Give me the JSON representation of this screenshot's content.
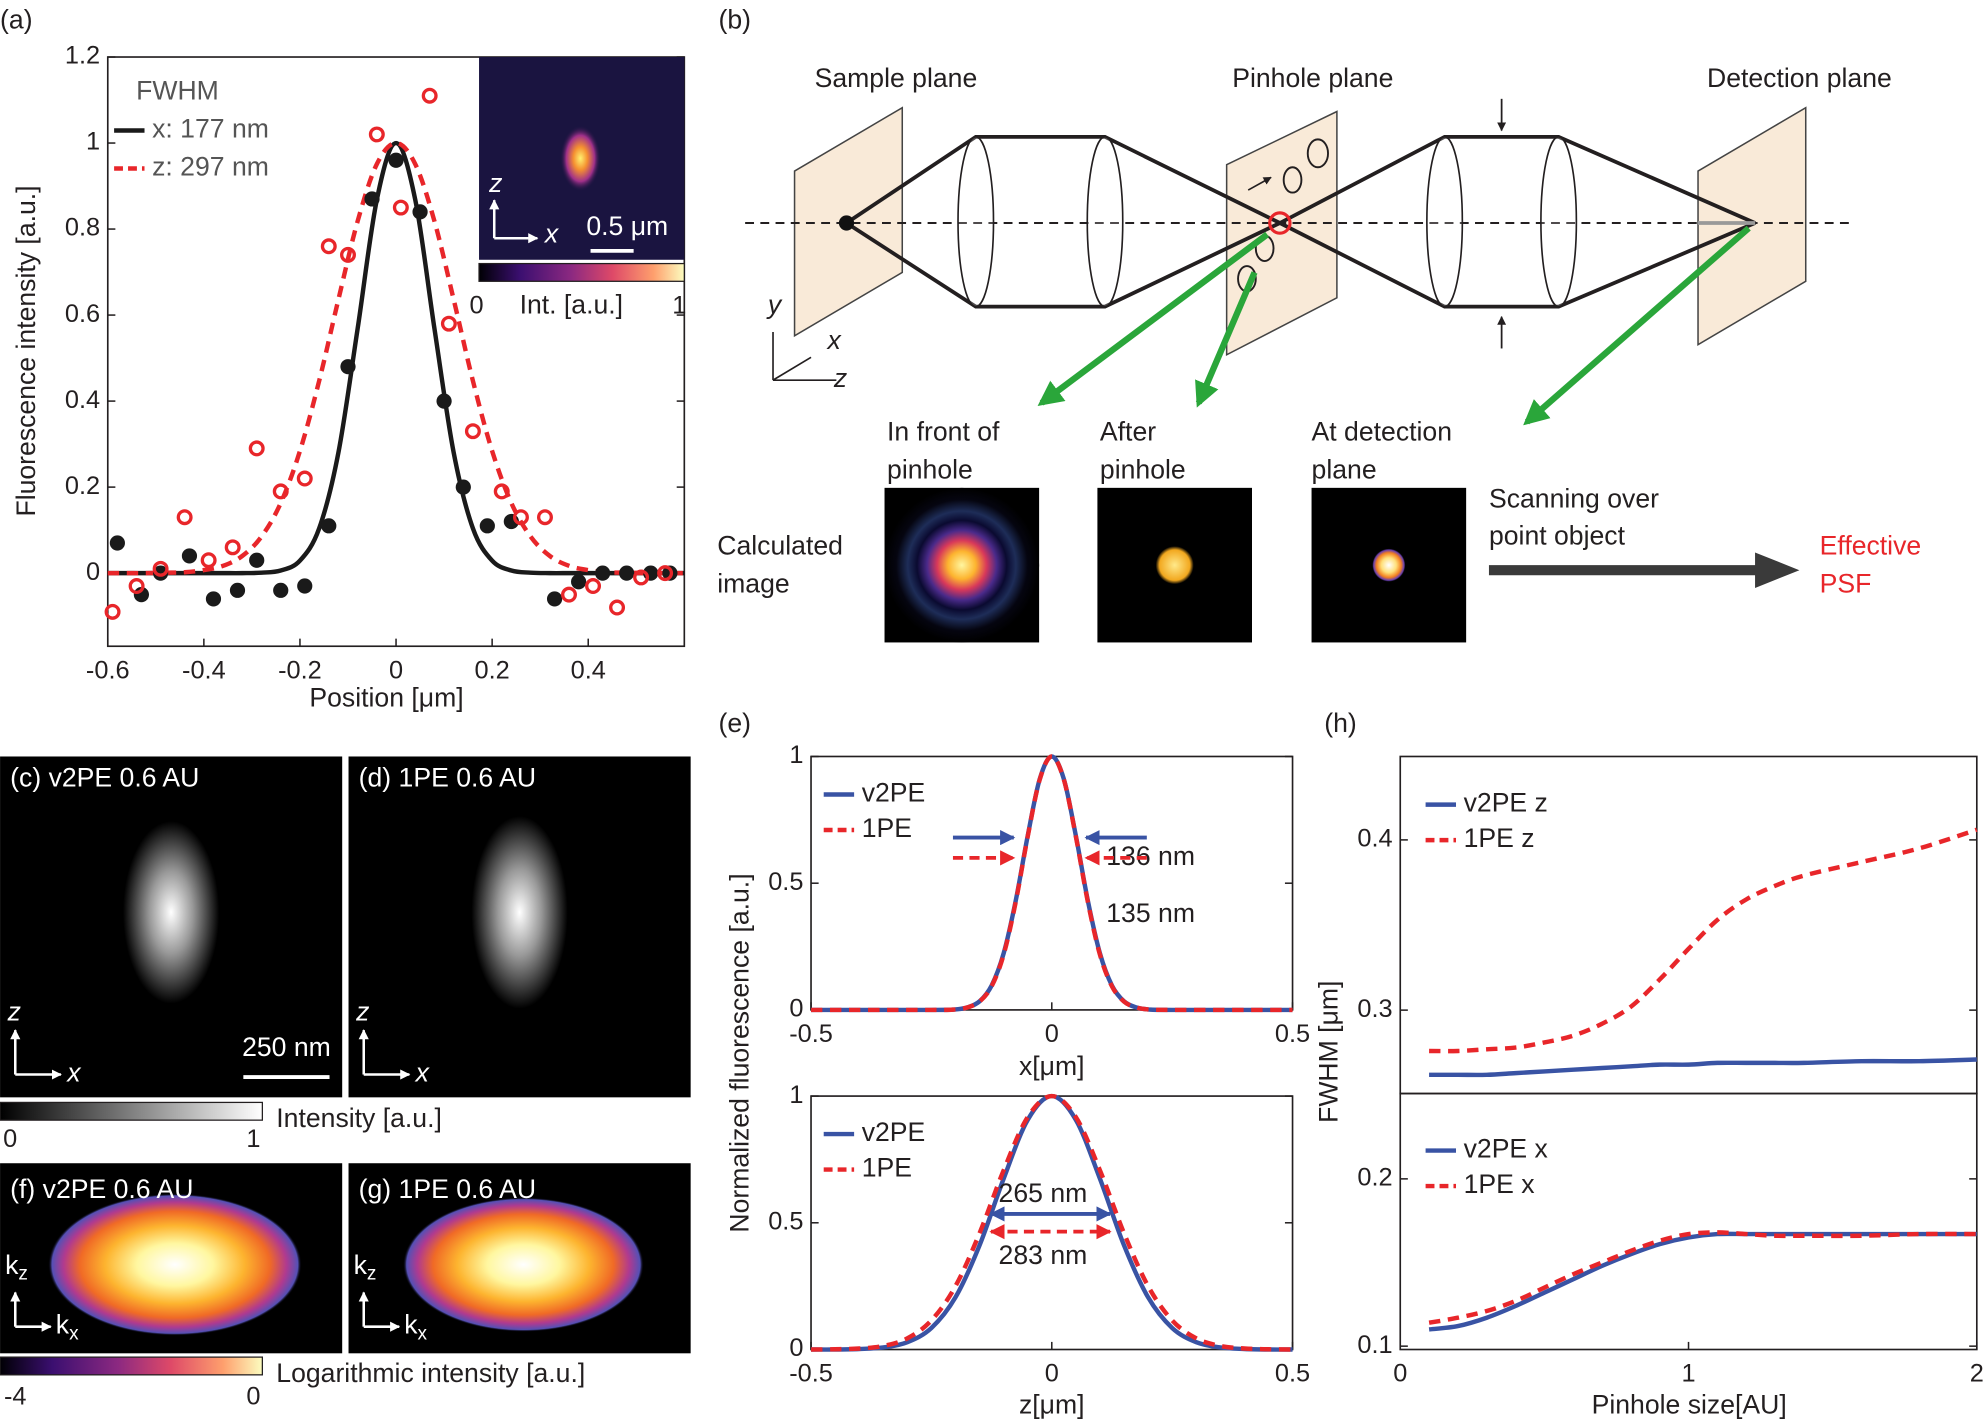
{
  "chart_data": [
    {
      "type": "scatter",
      "panel": "(a)",
      "xlabel": "Position [μm]",
      "ylabel": "Fluorescence intensity [a.u.]",
      "legend_title": "FWHM",
      "xlim": [
        -0.6,
        0.6
      ],
      "ylim": [
        -0.17,
        1.2
      ],
      "xticks": [
        -0.6,
        -0.4,
        -0.2,
        0,
        0.2,
        0.4
      ],
      "yticks": [
        0,
        0.2,
        0.4,
        0.6,
        0.8,
        1,
        1.2
      ],
      "series": [
        {
          "name": "x: 177 nm",
          "color": "#1a1a1a",
          "style": "solid",
          "x": [
            -0.6,
            -0.56,
            -0.52,
            -0.48,
            -0.44,
            -0.4,
            -0.36,
            -0.32,
            -0.28,
            -0.24,
            -0.2,
            -0.16,
            -0.12,
            -0.08,
            -0.04,
            0,
            0.04,
            0.08,
            0.12,
            0.16,
            0.2,
            0.24,
            0.28,
            0.32,
            0.36,
            0.4,
            0.44,
            0.48,
            0.52,
            0.56,
            0.6
          ],
          "values": [
            0,
            0,
            0,
            0,
            0,
            0,
            0,
            0,
            0.001,
            0.006,
            0.029,
            0.104,
            0.28,
            0.568,
            0.868,
            1,
            0.868,
            0.568,
            0.28,
            0.104,
            0.029,
            0.006,
            0.001,
            0,
            0,
            0,
            0,
            0,
            0,
            0,
            0
          ]
        },
        {
          "name": "z: 297 nm",
          "color": "#e8262a",
          "style": "dashed",
          "x": [
            -0.6,
            -0.56,
            -0.52,
            -0.48,
            -0.44,
            -0.4,
            -0.36,
            -0.32,
            -0.28,
            -0.24,
            -0.2,
            -0.16,
            -0.12,
            -0.08,
            -0.04,
            0,
            0.04,
            0.08,
            0.12,
            0.16,
            0.2,
            0.24,
            0.28,
            0.32,
            0.36,
            0.4,
            0.44,
            0.48,
            0.52,
            0.56,
            0.6
          ],
          "values": [
            0,
            0,
            0,
            0.001,
            0.002,
            0.007,
            0.017,
            0.04,
            0.085,
            0.163,
            0.284,
            0.447,
            0.636,
            0.818,
            0.951,
            1,
            0.951,
            0.818,
            0.636,
            0.447,
            0.284,
            0.163,
            0.085,
            0.04,
            0.017,
            0.007,
            0.002,
            0.001,
            0,
            0,
            0
          ]
        },
        {
          "color": "#1a1a1a",
          "marker": "filled",
          "x": [
            -0.58,
            -0.53,
            -0.49,
            -0.43,
            -0.38,
            -0.33,
            -0.29,
            -0.24,
            -0.19,
            -0.14,
            -0.1,
            -0.05,
            0,
            0.05,
            0.1,
            0.14,
            0.19,
            0.24,
            0.33,
            0.38,
            0.43,
            0.48,
            0.53,
            0.57
          ],
          "values": [
            0.07,
            -0.05,
            0.0,
            0.04,
            -0.06,
            -0.04,
            0.03,
            -0.04,
            -0.03,
            0.11,
            0.48,
            0.87,
            0.96,
            0.84,
            0.4,
            0.2,
            0.11,
            0.12,
            -0.06,
            -0.02,
            0.0,
            0.0,
            0.0,
            0.0
          ]
        },
        {
          "color": "#e8262a",
          "marker": "open",
          "x": [
            -0.59,
            -0.54,
            -0.49,
            -0.44,
            -0.39,
            -0.34,
            -0.29,
            -0.24,
            -0.19,
            -0.14,
            -0.1,
            -0.04,
            0.01,
            0.07,
            0.11,
            0.16,
            0.22,
            0.26,
            0.31,
            0.36,
            0.41,
            0.46,
            0.51,
            0.56
          ],
          "values": [
            -0.09,
            -0.03,
            0.01,
            0.13,
            0.03,
            0.06,
            0.29,
            0.19,
            0.22,
            0.76,
            0.74,
            1.02,
            0.85,
            1.11,
            0.58,
            0.33,
            0.19,
            0.13,
            0.13,
            -0.05,
            -0.03,
            -0.08,
            -0.01,
            0.0
          ]
        }
      ]
    },
    {
      "type": "line",
      "panel": "(e)",
      "xlabel": "x[μm]",
      "ylabel": "Normalized fluorescence [a.u.]",
      "xlim": [
        -0.5,
        0.5
      ],
      "ylim": [
        0,
        1
      ],
      "xticks": [
        -0.5,
        0,
        0.5
      ],
      "yticks": [
        0,
        0.5,
        1
      ],
      "x": [
        -0.5,
        -0.25,
        -0.2,
        -0.175,
        -0.15,
        -0.125,
        -0.1,
        -0.075,
        -0.05,
        -0.025,
        0,
        0.025,
        0.05,
        0.075,
        0.1,
        0.125,
        0.15,
        0.175,
        0.2,
        0.25,
        0.5
      ],
      "series": [
        {
          "name": "v2PE",
          "color": "#3953a4",
          "style": "solid",
          "values": [
            0,
            0,
            0.002,
            0.01,
            0.034,
            0.096,
            0.223,
            0.43,
            0.687,
            0.911,
            1,
            0.911,
            0.687,
            0.43,
            0.223,
            0.096,
            0.034,
            0.01,
            0.002,
            0,
            0
          ]
        },
        {
          "name": "1PE",
          "color": "#e8262a",
          "style": "dashed",
          "values": [
            0,
            0,
            0.002,
            0.01,
            0.033,
            0.093,
            0.218,
            0.425,
            0.684,
            0.909,
            1,
            0.909,
            0.684,
            0.425,
            0.218,
            0.093,
            0.033,
            0.01,
            0.002,
            0,
            0
          ]
        }
      ],
      "annotations": [
        {
          "text": "136 nm",
          "color": "#3953a4"
        },
        {
          "text": "135 nm",
          "color": "#e8262a"
        }
      ]
    },
    {
      "type": "line",
      "xlabel": "z[μm]",
      "xlim": [
        -0.5,
        0.5
      ],
      "ylim": [
        0,
        1
      ],
      "xticks": [
        -0.5,
        0,
        0.5
      ],
      "yticks": [
        0,
        0.5,
        1
      ],
      "x": [
        -0.5,
        -0.45,
        -0.4,
        -0.35,
        -0.3,
        -0.25,
        -0.2,
        -0.15,
        -0.1,
        -0.05,
        0,
        0.05,
        0.1,
        0.15,
        0.2,
        0.25,
        0.3,
        0.35,
        0.4,
        0.45,
        0.5
      ],
      "series": [
        {
          "name": "v2PE",
          "color": "#3953a4",
          "style": "solid",
          "values": [
            0,
            0,
            0.002,
            0.008,
            0.029,
            0.085,
            0.206,
            0.411,
            0.674,
            0.906,
            1,
            0.906,
            0.674,
            0.411,
            0.206,
            0.085,
            0.029,
            0.008,
            0.002,
            0,
            0
          ]
        },
        {
          "name": "1PE",
          "color": "#e8262a",
          "style": "dashed",
          "values": [
            0,
            0.001,
            0.004,
            0.014,
            0.044,
            0.115,
            0.25,
            0.459,
            0.707,
            0.917,
            1,
            0.917,
            0.707,
            0.459,
            0.25,
            0.115,
            0.044,
            0.014,
            0.004,
            0.001,
            0
          ]
        }
      ],
      "annotations": [
        {
          "text": "265 nm",
          "color": "#3953a4"
        },
        {
          "text": "283 nm",
          "color": "#e8262a"
        }
      ]
    },
    {
      "type": "line",
      "panel": "(h)",
      "ylabel": "FWHM [μm]",
      "xlim": [
        0,
        2
      ],
      "ylim": [
        0.251,
        0.449
      ],
      "yticks": [
        0.3,
        0.4
      ],
      "x": [
        0.1,
        0.2,
        0.3,
        0.4,
        0.5,
        0.6,
        0.7,
        0.8,
        0.9,
        1,
        1.1,
        1.2,
        1.3,
        1.4,
        1.6,
        1.8,
        2
      ],
      "series": [
        {
          "name": "v2PE z",
          "color": "#3953a4",
          "style": "solid",
          "values": [
            0.262,
            0.262,
            0.262,
            0.263,
            0.264,
            0.265,
            0.266,
            0.267,
            0.268,
            0.268,
            0.269,
            0.269,
            0.269,
            0.269,
            0.27,
            0.27,
            0.271
          ]
        },
        {
          "name": "1PE z",
          "color": "#e8262a",
          "style": "dashed",
          "values": [
            0.276,
            0.276,
            0.277,
            0.278,
            0.281,
            0.285,
            0.292,
            0.302,
            0.318,
            0.336,
            0.353,
            0.365,
            0.373,
            0.379,
            0.387,
            0.395,
            0.406
          ]
        }
      ]
    },
    {
      "type": "line",
      "xlabel": "Pinhole size[AU]",
      "xlim": [
        0,
        2
      ],
      "ylim": [
        0.098,
        0.251
      ],
      "xticks": [
        0,
        1,
        2
      ],
      "yticks": [
        0.1,
        0.2
      ],
      "x": [
        0.1,
        0.2,
        0.3,
        0.4,
        0.5,
        0.6,
        0.7,
        0.8,
        0.9,
        1,
        1.1,
        1.2,
        1.3,
        1.4,
        1.6,
        1.8,
        2
      ],
      "series": [
        {
          "name": "v2PE x",
          "color": "#3953a4",
          "style": "solid",
          "values": [
            0.11,
            0.112,
            0.117,
            0.124,
            0.132,
            0.14,
            0.148,
            0.155,
            0.161,
            0.165,
            0.167,
            0.167,
            0.167,
            0.167,
            0.167,
            0.167,
            0.167
          ]
        },
        {
          "name": "1PE x",
          "color": "#e8262a",
          "style": "dashed",
          "values": [
            0.114,
            0.117,
            0.121,
            0.127,
            0.135,
            0.143,
            0.15,
            0.157,
            0.163,
            0.167,
            0.168,
            0.167,
            0.166,
            0.166,
            0.166,
            0.167,
            0.167
          ]
        }
      ]
    }
  ],
  "diagram": {
    "panel": "(b)",
    "planes": [
      "Sample plane",
      "Pinhole plane",
      "Detection plane"
    ],
    "axes": [
      "y",
      "x",
      "z"
    ],
    "stages": [
      [
        "In front of",
        "pinhole"
      ],
      [
        "After",
        "pinhole"
      ],
      [
        "At detection",
        "plane"
      ]
    ],
    "calculated": [
      "Calculated",
      "image"
    ],
    "scanning": [
      "Scanning over",
      "point object"
    ],
    "result": [
      "Effective",
      "PSF"
    ]
  },
  "images": {
    "inset": {
      "axes": [
        "z",
        "x"
      ],
      "scale": "0.5 μm",
      "colorbar": {
        "min": 0,
        "max": 1,
        "label": "Int. [a.u.]"
      }
    },
    "c": "(c) v2PE 0.6 AU",
    "d": "(d) 1PE 0.6 AU",
    "spatial_axes": [
      "z",
      "x"
    ],
    "scale_bar": "250 nm",
    "intensity_bar": {
      "min": 0,
      "max": 1,
      "label": "Intensity [a.u.]"
    },
    "f": "(f) v2PE 0.6 AU",
    "g": "(g) 1PE 0.6 AU",
    "k_axes": [
      {
        "base": "k",
        "sub": "z"
      },
      {
        "base": "k",
        "sub": "x"
      }
    ],
    "log_bar": {
      "min": -4,
      "max": 0,
      "label": "Logarithmic intensity [a.u.]"
    }
  }
}
